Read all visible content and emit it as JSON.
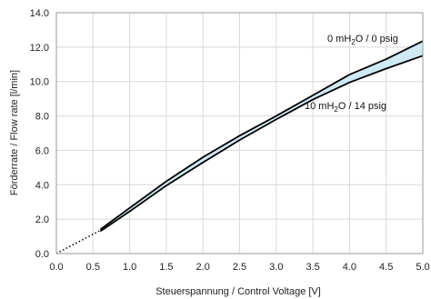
{
  "chart_data": {
    "type": "area",
    "xlabel": "Steuerspannung / Control Voltage [V]",
    "ylabel": "Förderrate / Flow rate [l/min]",
    "xlim": [
      0,
      5
    ],
    "ylim": [
      0,
      14
    ],
    "x_ticks": [
      "0.0",
      "0.5",
      "1.0",
      "1.5",
      "2.0",
      "2.5",
      "3.0",
      "3.5",
      "4.0",
      "4.5",
      "5.0"
    ],
    "y_ticks": [
      "0.0",
      "2.0",
      "4.0",
      "6.0",
      "8.0",
      "10.0",
      "12.0",
      "14.0"
    ],
    "grid": true,
    "band_color": "#cfe9f4",
    "line_color": "#000000",
    "series": [
      {
        "label_main": "0 mH",
        "label_sub": "2",
        "label_rest": "O / 0 psig",
        "x": [
          0.6,
          1.0,
          1.5,
          2.0,
          2.5,
          3.0,
          3.5,
          4.0,
          4.5,
          5.0
        ],
        "y": [
          1.4,
          2.65,
          4.2,
          5.6,
          6.85,
          8.0,
          9.2,
          10.4,
          11.3,
          12.35
        ]
      },
      {
        "label_main": "10 mH",
        "label_sub": "2",
        "label_rest": "O / 14 psig",
        "x": [
          0.6,
          1.0,
          1.5,
          2.0,
          2.5,
          3.0,
          3.5,
          4.0,
          4.5,
          5.0
        ],
        "y": [
          1.3,
          2.45,
          3.95,
          5.3,
          6.6,
          7.8,
          8.95,
          9.95,
          10.75,
          11.5
        ]
      }
    ],
    "extrapolation": {
      "style": "dotted",
      "x": [
        0,
        0.6
      ],
      "y": [
        0,
        1.35
      ]
    }
  }
}
